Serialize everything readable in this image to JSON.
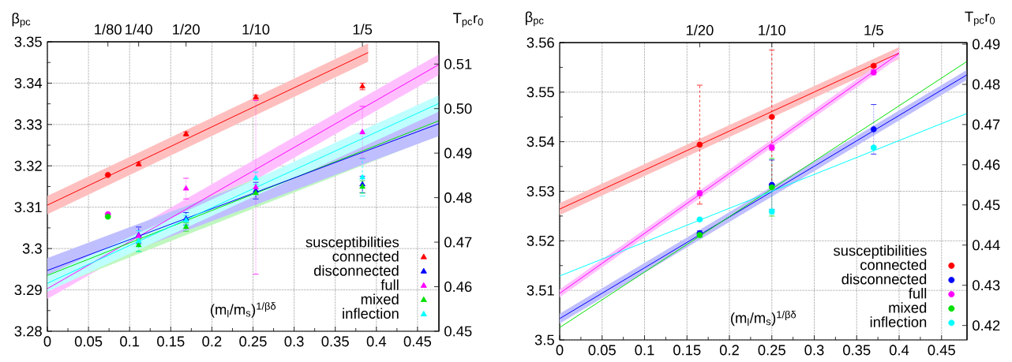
{
  "chart_data": [
    {
      "type": "scatter",
      "xlabel": "(m$_{l}$/m$_{s}$)$^{1/βδ}$",
      "ylabel": "β$_{pc}$",
      "y2label": "T$_{pc}$r$_{0}$",
      "legend_title": "susceptibilities",
      "legend": "bottom right",
      "grid": true,
      "xlim": [
        0,
        0.476
      ],
      "xticks": [
        0,
        0.05,
        0.1,
        0.15,
        0.2,
        0.25,
        0.3,
        0.35,
        0.4,
        0.45
      ],
      "ylim": [
        3.28,
        3.35
      ],
      "yticks": [
        3.28,
        3.29,
        3.3,
        3.31,
        3.32,
        3.33,
        3.34,
        3.35
      ],
      "annotations": [
        "1/80",
        "1/40",
        "1/20",
        "1/10",
        "1/5"
      ],
      "y2lim": [
        0.45,
        0.515
      ],
      "y2ticks": [
        0.45,
        0.46,
        0.47,
        0.48,
        0.49,
        {
          "value": 0.5,
          "label": "0.50"
        },
        0.51
      ],
      "series": [
        {
          "type": "line",
          "color": "#ff0000",
          "marker": "none",
          "line_style": "solid",
          "x": [
            0,
            0.39
          ],
          "values": [
            3.3105,
            3.3474
          ],
          "lower": [
            3.3083,
            3.3452
          ],
          "upper": [
            3.3127,
            3.3496
          ]
        },
        {
          "type": "line",
          "color": "#ff00ff",
          "marker": "none",
          "line_style": "solid",
          "x": [
            0,
            0.476
          ],
          "values": [
            3.2903,
            3.3445
          ],
          "lower": [
            3.2878,
            3.342
          ],
          "upper": [
            3.2928,
            3.347
          ]
        },
        {
          "type": "line",
          "color": "#00e000",
          "marker": "none",
          "line_style": "solid",
          "x": [
            0,
            0.476
          ],
          "values": [
            3.2935,
            3.3309
          ],
          "lower": [
            3.29,
            3.3274
          ],
          "upper": [
            3.297,
            3.3344
          ]
        },
        {
          "type": "line",
          "color": "#0000ff",
          "marker": "none",
          "line_style": "solid",
          "x": [
            0,
            0.476
          ],
          "values": [
            3.2947,
            3.3302
          ],
          "lower": [
            3.2917,
            3.3272
          ],
          "upper": [
            3.2977,
            3.3332
          ]
        },
        {
          "type": "line",
          "color": "#00ffff",
          "marker": "none",
          "line_style": "solid",
          "x": [
            0,
            0.476
          ],
          "values": [
            3.2916,
            3.3351
          ],
          "lower": [
            3.2896,
            3.3331
          ],
          "upper": [
            3.2936,
            3.3371
          ]
        },
        {
          "color": "#ff0000",
          "marker": "circle",
          "x": [
            0.0736
          ],
          "values": [
            3.3178
          ]
        },
        {
          "color": "#ff00ff",
          "marker": "circle",
          "x": [
            0.0736
          ],
          "values": [
            3.3083
          ]
        },
        {
          "color": "#00e000",
          "marker": "circle",
          "x": [
            0.0736
          ],
          "values": [
            3.3077
          ]
        },
        {
          "name": "connected",
          "color": "#ff0000",
          "marker": "triangle",
          "line_style": "solid",
          "x": [
            0.111,
            0.1686,
            0.2534,
            0.383
          ],
          "values": [
            3.3204,
            3.3277,
            3.3366,
            3.3392
          ],
          "errors": [
            0.0004,
            0.0005,
            0.0005,
            0.0008
          ]
        },
        {
          "name": "disconnected",
          "color": "#0000ff",
          "marker": "triangle",
          "line_style": "dashed",
          "x": [
            0.111,
            0.1686,
            0.2534,
            0.383
          ],
          "values": [
            3.3032,
            3.3072,
            3.314,
            3.3155
          ],
          "errors": [
            0.002,
            0.0015,
            0.002,
            0.002
          ]
        },
        {
          "name": "full",
          "color": "#ff00ff",
          "marker": "triangle",
          "line_style": "dotted",
          "x": [
            0.111,
            0.1686,
            0.2534,
            0.383
          ],
          "values": [
            3.303,
            3.3145,
            3.3148,
            3.3281
          ],
          "errors": [
            null,
            0.0025,
            0.021,
            0.0063
          ]
        },
        {
          "name": "mixed",
          "color": "#00e000",
          "marker": "triangle",
          "line_style": "dashed",
          "x": [
            0.111,
            0.1686,
            0.2534,
            0.383
          ],
          "values": [
            3.3008,
            3.3052,
            3.3134,
            3.3149
          ],
          "errors": [
            0.0015,
            0.001,
            null,
            0.0015
          ]
        },
        {
          "name": "inflection",
          "color": "#00ffff",
          "marker": "triangle",
          "line_style": "dashed",
          "x": [
            0.111,
            0.1686,
            0.2534,
            0.383
          ],
          "values": [
            3.3018,
            3.3068,
            3.317,
            3.3172
          ],
          "errors": [
            0.0025,
            0.0012,
            0.0015,
            0.0045
          ]
        }
      ]
    },
    {
      "type": "scatter",
      "xlabel": "(m$_{l}$/m$_{s}$)$^{1/βδ}$",
      "ylabel": "β$_{pc}$",
      "y2label": "T$_{pc}$r$_{0}$",
      "legend_title": "susceptibilities",
      "legend": "bottom right",
      "grid": true,
      "xlim": [
        0,
        0.48
      ],
      "xticks": [
        0,
        0.05,
        0.1,
        0.15,
        0.2,
        0.25,
        0.3,
        0.35,
        0.4,
        0.45
      ],
      "ylim": [
        3.5,
        3.56
      ],
      "yticks": [
        3.5,
        3.51,
        3.52,
        3.53,
        3.54,
        3.55,
        3.56
      ],
      "annotations": [
        "1/20",
        "1/10",
        "1/5"
      ],
      "y2lim": [
        0.4164,
        0.4904
      ],
      "y2ticks": [
        0.42,
        0.43,
        0.44,
        0.45,
        0.46,
        0.47,
        0.48,
        0.49
      ],
      "series": [
        {
          "type": "line",
          "color": "#ff0000",
          "marker": "none",
          "line_style": "solid",
          "x": [
            0,
            0.4
          ],
          "values": [
            3.5264,
            3.5579
          ],
          "lower": [
            3.5252,
            3.5567
          ],
          "upper": [
            3.5276,
            3.5591
          ]
        },
        {
          "type": "line",
          "color": "#ff00ff",
          "marker": "none",
          "line_style": "solid",
          "x": [
            0,
            0.4
          ],
          "values": [
            3.5094,
            3.5578
          ],
          "lower": [
            3.5086,
            3.557
          ],
          "upper": [
            3.5102,
            3.5586
          ]
        },
        {
          "type": "line",
          "color": "#0000ff",
          "marker": "none",
          "line_style": "solid",
          "x": [
            0,
            0.48
          ],
          "values": [
            3.5043,
            3.5535
          ],
          "lower": [
            3.5033,
            3.5525
          ],
          "upper": [
            3.5053,
            3.5545
          ]
        },
        {
          "type": "line",
          "color": "#00e000",
          "marker": "none",
          "line_style": "solid",
          "x": [
            0,
            0.48
          ],
          "values": [
            3.5025,
            3.5562
          ]
        },
        {
          "type": "line",
          "color": "#00ffff",
          "marker": "none",
          "line_style": "solid",
          "x": [
            0,
            0.48
          ],
          "values": [
            3.5129,
            3.5457
          ]
        },
        {
          "name": "connected",
          "color": "#ff0000",
          "marker": "circle",
          "line_style": "dashed",
          "x": [
            0.165,
            0.25,
            0.37
          ],
          "values": [
            3.5394,
            3.545,
            3.5553
          ],
          "errors": [
            0.012,
            0.0135,
            0.0003
          ]
        },
        {
          "name": "disconnected",
          "color": "#0000ff",
          "marker": "circle",
          "line_style": "dotted",
          "x": [
            0.165,
            0.25,
            0.37
          ],
          "values": [
            3.5215,
            3.5313,
            3.5425
          ],
          "errors": [
            0.0005,
            0.005,
            0.005
          ]
        },
        {
          "name": "full",
          "color": "#ff00ff",
          "marker": "circle",
          "line_style": "dashed",
          "x": [
            0.165,
            0.25,
            0.37
          ],
          "values": [
            3.5296,
            3.5388,
            3.554
          ],
          "errors": [
            0.0005,
            0.0005,
            0.0005
          ]
        },
        {
          "name": "mixed",
          "color": "#00e000",
          "marker": "circle",
          "line_style": "dotted",
          "x": [
            0.165,
            0.25
          ],
          "values": [
            3.5212,
            3.5308
          ],
          "errors": [
            0.0005,
            0.0058
          ]
        },
        {
          "name": "inflection",
          "color": "#00ffff",
          "marker": "circle",
          "line_style": "dashed",
          "x": [
            0.165,
            0.25,
            0.37
          ],
          "values": [
            3.5243,
            3.5259,
            3.5388
          ],
          "errors": [
            0.0003,
            0.0005,
            0.0003
          ]
        }
      ]
    }
  ]
}
